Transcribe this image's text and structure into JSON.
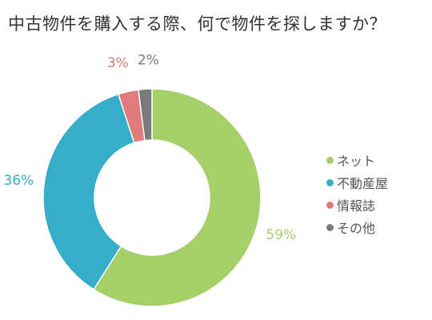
{
  "chart_data": {
    "type": "pie",
    "title": "中古物件を購入する際、何で物件を探しますか？",
    "donut": true,
    "categories": [
      "ネット",
      "不動産屋",
      "情報誌",
      "その他"
    ],
    "values": [
      59,
      36,
      3,
      2
    ],
    "labels": [
      "59%",
      "36%",
      "3%",
      "2%"
    ],
    "colors": [
      "#a5cf68",
      "#36aec9",
      "#e07b7b",
      "#7a7a7a"
    ],
    "legend_position": "right"
  }
}
